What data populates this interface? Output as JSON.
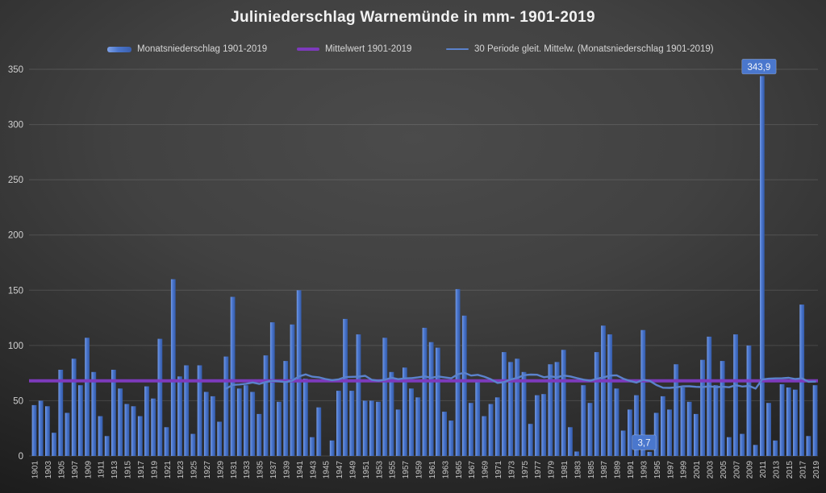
{
  "title": "Juliniederschlag Warnemünde in mm- 1901-2019",
  "legend": [
    {
      "label": "Monatsniederschlag 1901-2019",
      "type": "bar",
      "color": "#4470c8"
    },
    {
      "label": "Mittelwert 1901-2019",
      "type": "line",
      "color": "#7d3abc"
    },
    {
      "label": "30 Periode gleit. Mittelw. (Monatsniederschlag 1901-2019)",
      "type": "line",
      "color": "#5b82cc"
    }
  ],
  "colors": {
    "background_center": "#4b4b4b",
    "background_edge": "#1c1c1c",
    "bar": "#4470c8",
    "mean_line": "#7d3abc",
    "moving_average_line": "#5b82cc",
    "gridline": "rgba(255,255,255,0.13)",
    "tick_text": "#d0d0d0",
    "title_text": "#f2f2f2",
    "data_label_fill": "#4a77cd"
  },
  "chart_data": {
    "type": "bar",
    "title": "Juliniederschlag Warnemünde in mm- 1901-2019",
    "xlabel": "",
    "ylabel": "",
    "ylim": [
      0,
      350
    ],
    "yticks": [
      0,
      50,
      100,
      150,
      200,
      250,
      300,
      350
    ],
    "xtick_step": 2,
    "grid": true,
    "legend_position": "top",
    "series_name": "Monatsniederschlag 1901-2019",
    "mean_series_name": "Mittelwert 1901-2019",
    "moving_avg_series_name": "30 Periode gleit. Mittelw. (Monatsniederschlag 1901-2019)",
    "moving_avg_window": 30,
    "x": [
      1901,
      1902,
      1903,
      1904,
      1905,
      1906,
      1907,
      1908,
      1909,
      1910,
      1911,
      1912,
      1913,
      1914,
      1915,
      1916,
      1917,
      1918,
      1919,
      1920,
      1921,
      1922,
      1923,
      1924,
      1925,
      1926,
      1927,
      1928,
      1929,
      1930,
      1931,
      1932,
      1933,
      1934,
      1935,
      1936,
      1937,
      1938,
      1939,
      1940,
      1941,
      1942,
      1943,
      1944,
      1945,
      1946,
      1947,
      1948,
      1949,
      1950,
      1951,
      1952,
      1953,
      1954,
      1955,
      1956,
      1957,
      1958,
      1959,
      1960,
      1961,
      1962,
      1963,
      1964,
      1965,
      1966,
      1967,
      1968,
      1969,
      1970,
      1971,
      1972,
      1973,
      1974,
      1975,
      1976,
      1977,
      1978,
      1979,
      1980,
      1981,
      1982,
      1983,
      1984,
      1985,
      1986,
      1987,
      1988,
      1989,
      1990,
      1991,
      1992,
      1993,
      1994,
      1995,
      1996,
      1997,
      1998,
      1999,
      2000,
      2001,
      2002,
      2003,
      2004,
      2005,
      2006,
      2007,
      2008,
      2009,
      2010,
      2011,
      2012,
      2013,
      2014,
      2015,
      2016,
      2017,
      2018,
      2019
    ],
    "values": [
      46,
      50,
      45,
      21,
      78,
      39,
      88,
      64,
      107,
      76,
      36,
      18,
      78,
      61,
      47,
      45,
      36,
      63,
      52,
      106,
      26,
      160,
      72,
      82,
      20,
      82,
      58,
      54,
      31,
      90,
      144,
      61,
      64,
      58,
      38,
      91,
      121,
      49,
      86,
      119,
      150,
      70,
      17,
      44,
      0,
      14,
      59,
      124,
      59,
      110,
      50,
      50,
      49,
      107,
      76,
      42,
      80,
      61,
      53,
      116,
      103,
      98,
      40,
      32,
      151,
      127,
      48,
      67,
      36,
      47,
      53,
      94,
      85,
      88,
      76,
      29,
      55,
      56,
      83,
      85,
      96,
      26,
      4,
      64,
      48,
      94,
      118,
      110,
      61,
      23,
      42,
      55,
      114,
      3.7,
      39,
      54,
      42,
      83,
      62,
      49,
      38,
      87,
      108,
      64,
      86,
      17,
      110,
      20,
      100,
      10,
      343.9,
      48,
      14,
      65,
      62,
      60,
      137,
      18,
      64
    ],
    "annotations": [
      {
        "year": 1994,
        "label": "3,7"
      },
      {
        "year": 2011,
        "label": "343,9"
      }
    ]
  }
}
